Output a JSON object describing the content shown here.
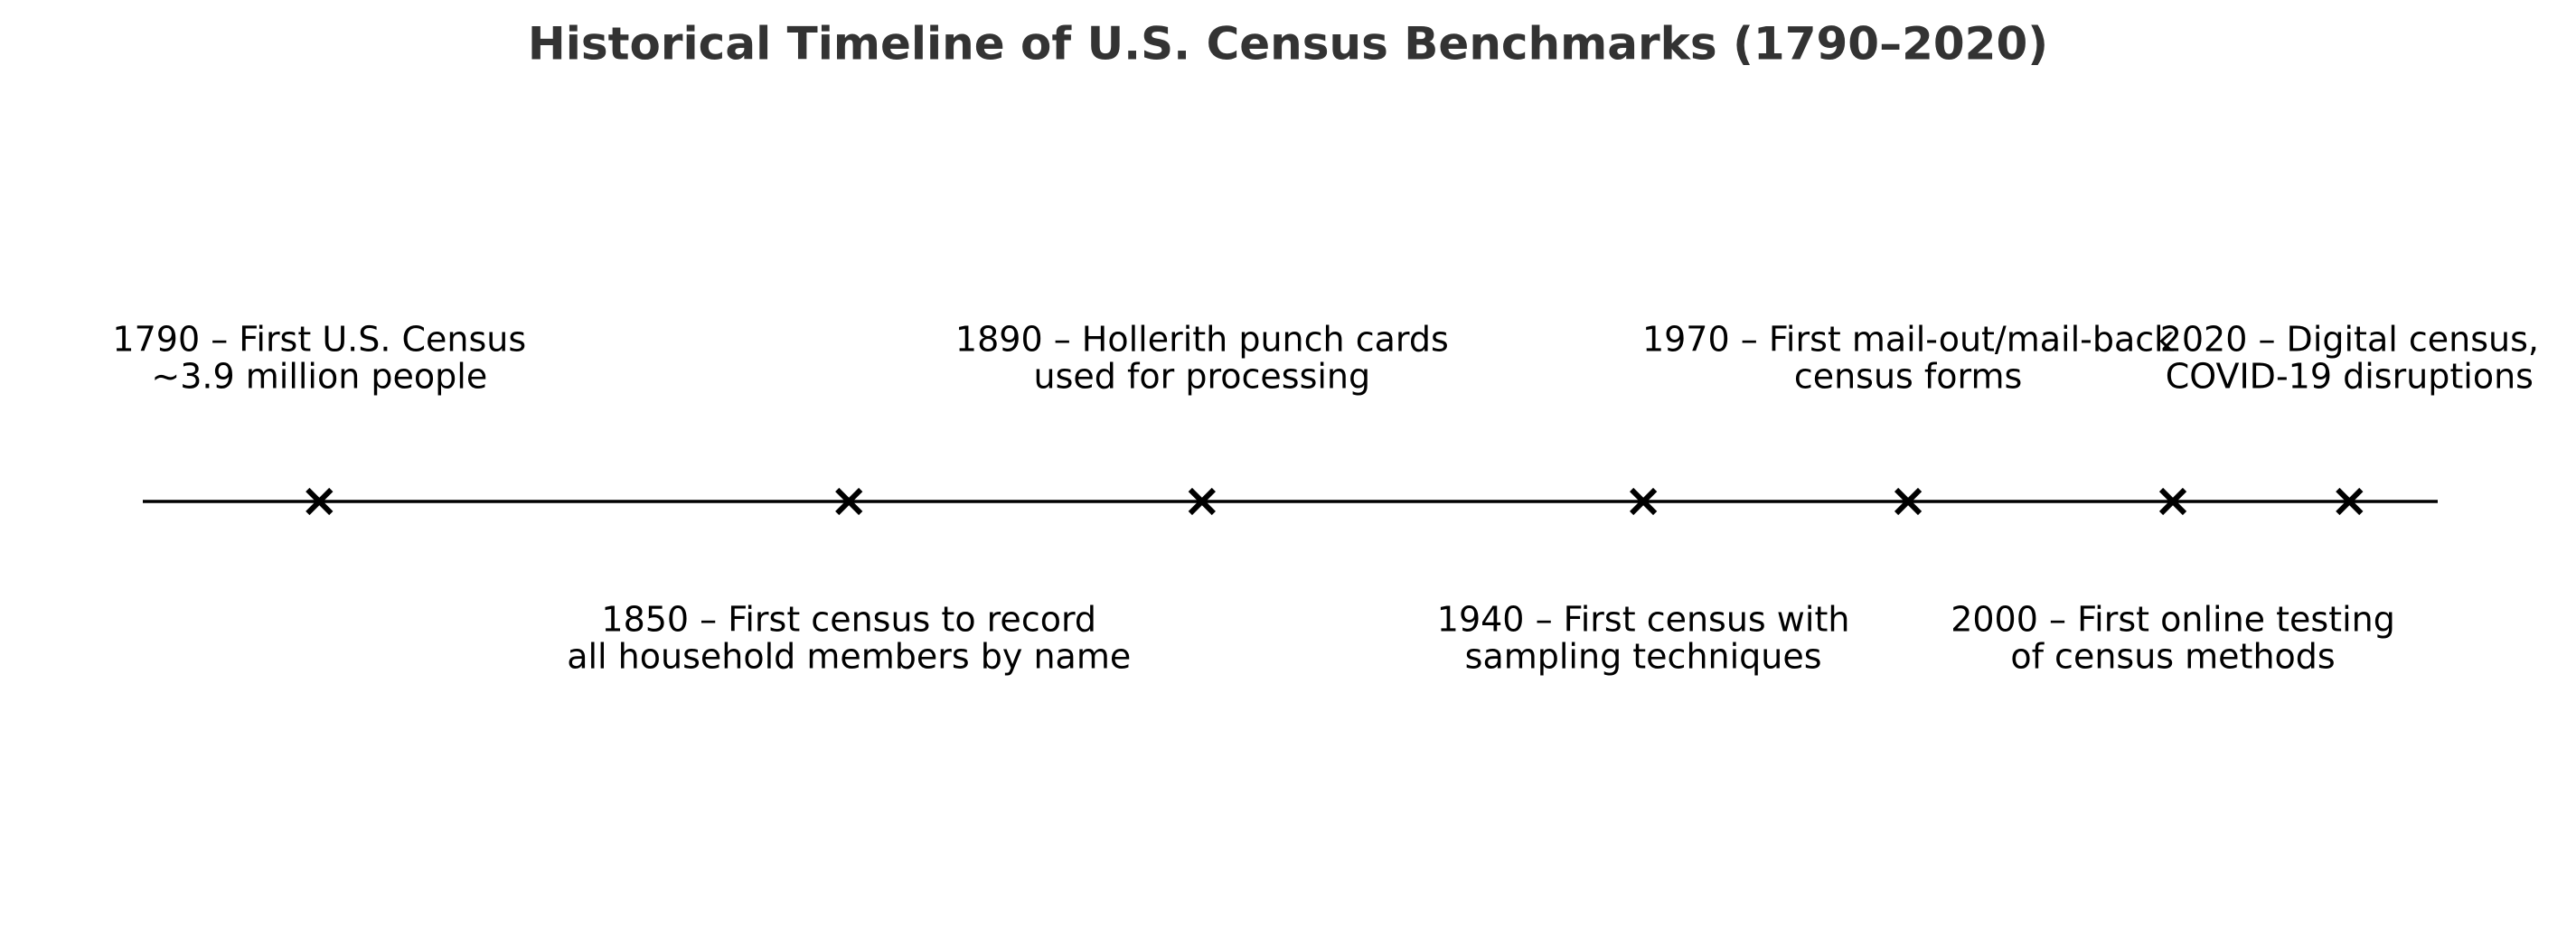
{
  "title": "Historical Timeline of U.S. Census Benchmarks (1790–2020)",
  "colors": {
    "title": "#333333",
    "line": "#000000",
    "marker": "#000000",
    "text": "#000000",
    "background": "#ffffff"
  },
  "marker_icon": "x-marker-icon",
  "chart_data": {
    "type": "timeline",
    "title": "Historical Timeline of U.S. Census Benchmarks (1790–2020)",
    "x_range": [
      1770,
      2030
    ],
    "events": [
      {
        "year": 1790,
        "label_lines": [
          "1790 – First U.S. Census",
          "~3.9 million people"
        ],
        "side": "above"
      },
      {
        "year": 1850,
        "label_lines": [
          "1850 – First census to record",
          "all household members by name"
        ],
        "side": "below"
      },
      {
        "year": 1890,
        "label_lines": [
          "1890 – Hollerith punch cards",
          "used for processing"
        ],
        "side": "above"
      },
      {
        "year": 1940,
        "label_lines": [
          "1940 – First census with",
          "sampling techniques"
        ],
        "side": "below"
      },
      {
        "year": 1970,
        "label_lines": [
          "1970 – First mail-out/mail-back",
          "census forms"
        ],
        "side": "above"
      },
      {
        "year": 2000,
        "label_lines": [
          "2000 – First online testing",
          "of census methods"
        ],
        "side": "below"
      },
      {
        "year": 2020,
        "label_lines": [
          "2020 – Digital census,",
          "COVID-19 disruptions"
        ],
        "side": "above"
      }
    ]
  }
}
